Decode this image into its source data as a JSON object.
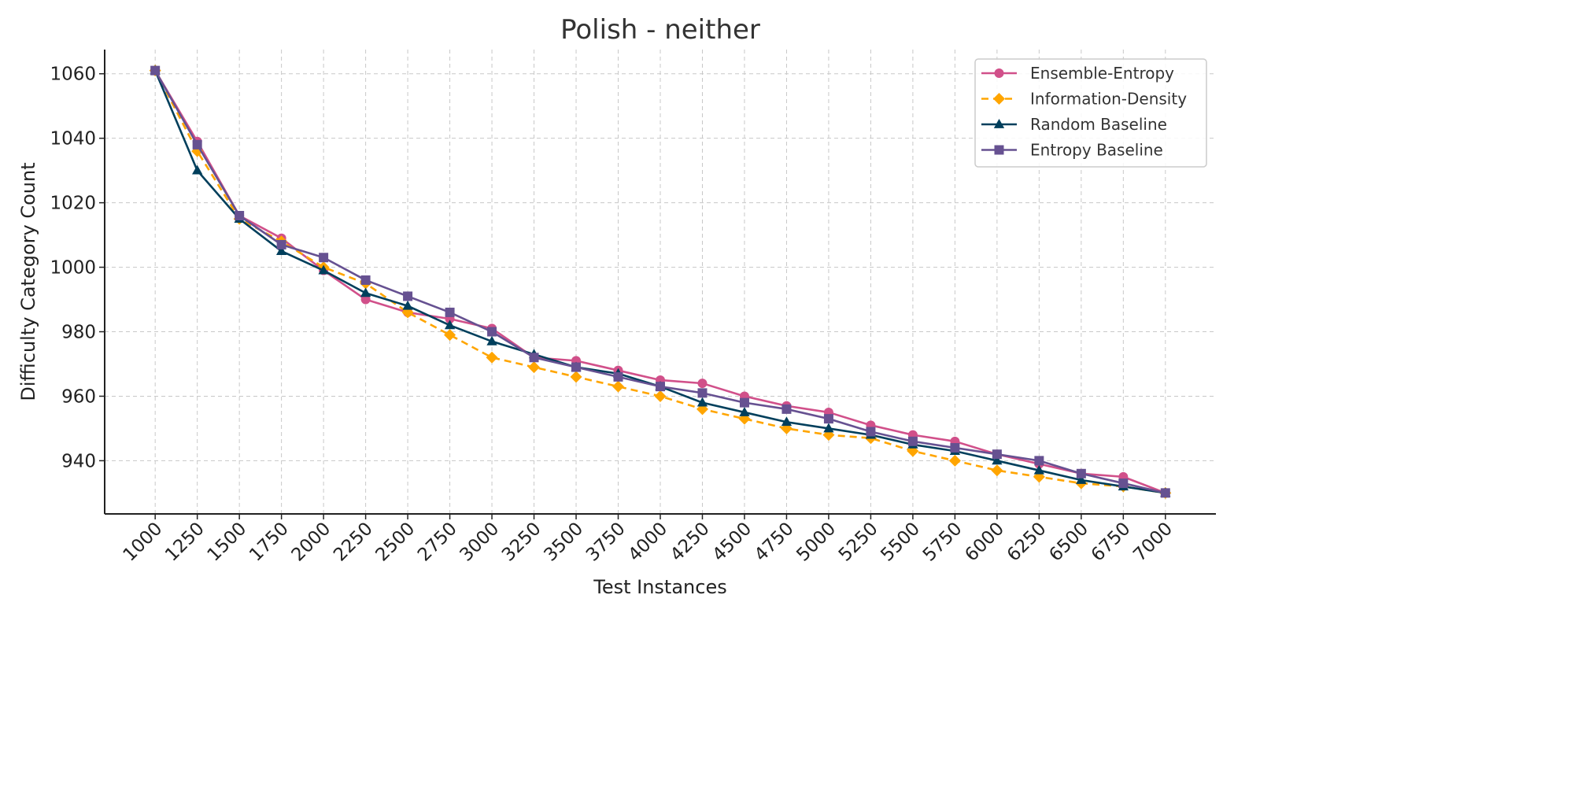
{
  "chart_data": {
    "type": "line",
    "title": "Polish - neither",
    "xlabel": "Test Instances",
    "ylabel": "Difficulty Category Count",
    "x": [
      1000,
      1250,
      1500,
      1750,
      2000,
      2250,
      2500,
      2750,
      3000,
      3250,
      3500,
      3750,
      4000,
      4250,
      4500,
      4750,
      5000,
      5250,
      5500,
      5750,
      6000,
      6250,
      6500,
      6750,
      7000
    ],
    "x_tick_labels": [
      "1000",
      "1250",
      "1500",
      "1750",
      "2000",
      "2250",
      "2500",
      "2750",
      "3000",
      "3250",
      "3500",
      "3750",
      "4000",
      "4250",
      "4500",
      "4750",
      "5000",
      "5250",
      "5500",
      "5750",
      "6000",
      "6250",
      "6500",
      "6750",
      "7000"
    ],
    "xlim": [
      700,
      7300
    ],
    "ylim": [
      923.5,
      1067.5
    ],
    "y_ticks": [
      940,
      960,
      980,
      1000,
      1020,
      1040,
      1060
    ],
    "y_tick_labels": [
      "940",
      "960",
      "980",
      "1000",
      "1020",
      "1040",
      "1060"
    ],
    "grid": true,
    "legend_position": "top-right",
    "series": [
      {
        "name": "Ensemble-Entropy",
        "color": "#d1508a",
        "marker": "circle",
        "line_style": "solid",
        "values": [
          1061,
          1039,
          1016,
          1009,
          999,
          990,
          986,
          984,
          981,
          972,
          971,
          968,
          965,
          964,
          960,
          957,
          955,
          951,
          948,
          946,
          942,
          939,
          936,
          935,
          930
        ]
      },
      {
        "name": "Information-Density",
        "color": "#ffa500",
        "marker": "diamond",
        "line_style": "dashed",
        "values": [
          1061,
          1036,
          1015,
          1008,
          1000,
          995,
          986,
          979,
          972,
          969,
          966,
          963,
          960,
          956,
          953,
          950,
          948,
          947,
          943,
          940,
          937,
          935,
          933,
          932,
          930
        ]
      },
      {
        "name": "Random Baseline",
        "color": "#003f5c",
        "marker": "triangle",
        "line_style": "solid",
        "values": [
          1061,
          1030,
          1015,
          1005,
          999,
          992,
          988,
          982,
          977,
          973,
          969,
          967,
          963,
          958,
          955,
          952,
          950,
          948,
          945,
          943,
          940,
          937,
          934,
          932,
          930
        ]
      },
      {
        "name": "Entropy Baseline",
        "color": "#665191",
        "marker": "square",
        "line_style": "solid",
        "values": [
          1061,
          1038,
          1016,
          1007,
          1003,
          996,
          991,
          986,
          980,
          972,
          969,
          966,
          963,
          961,
          958,
          956,
          953,
          949,
          946,
          944,
          942,
          940,
          936,
          933,
          930
        ]
      }
    ]
  }
}
